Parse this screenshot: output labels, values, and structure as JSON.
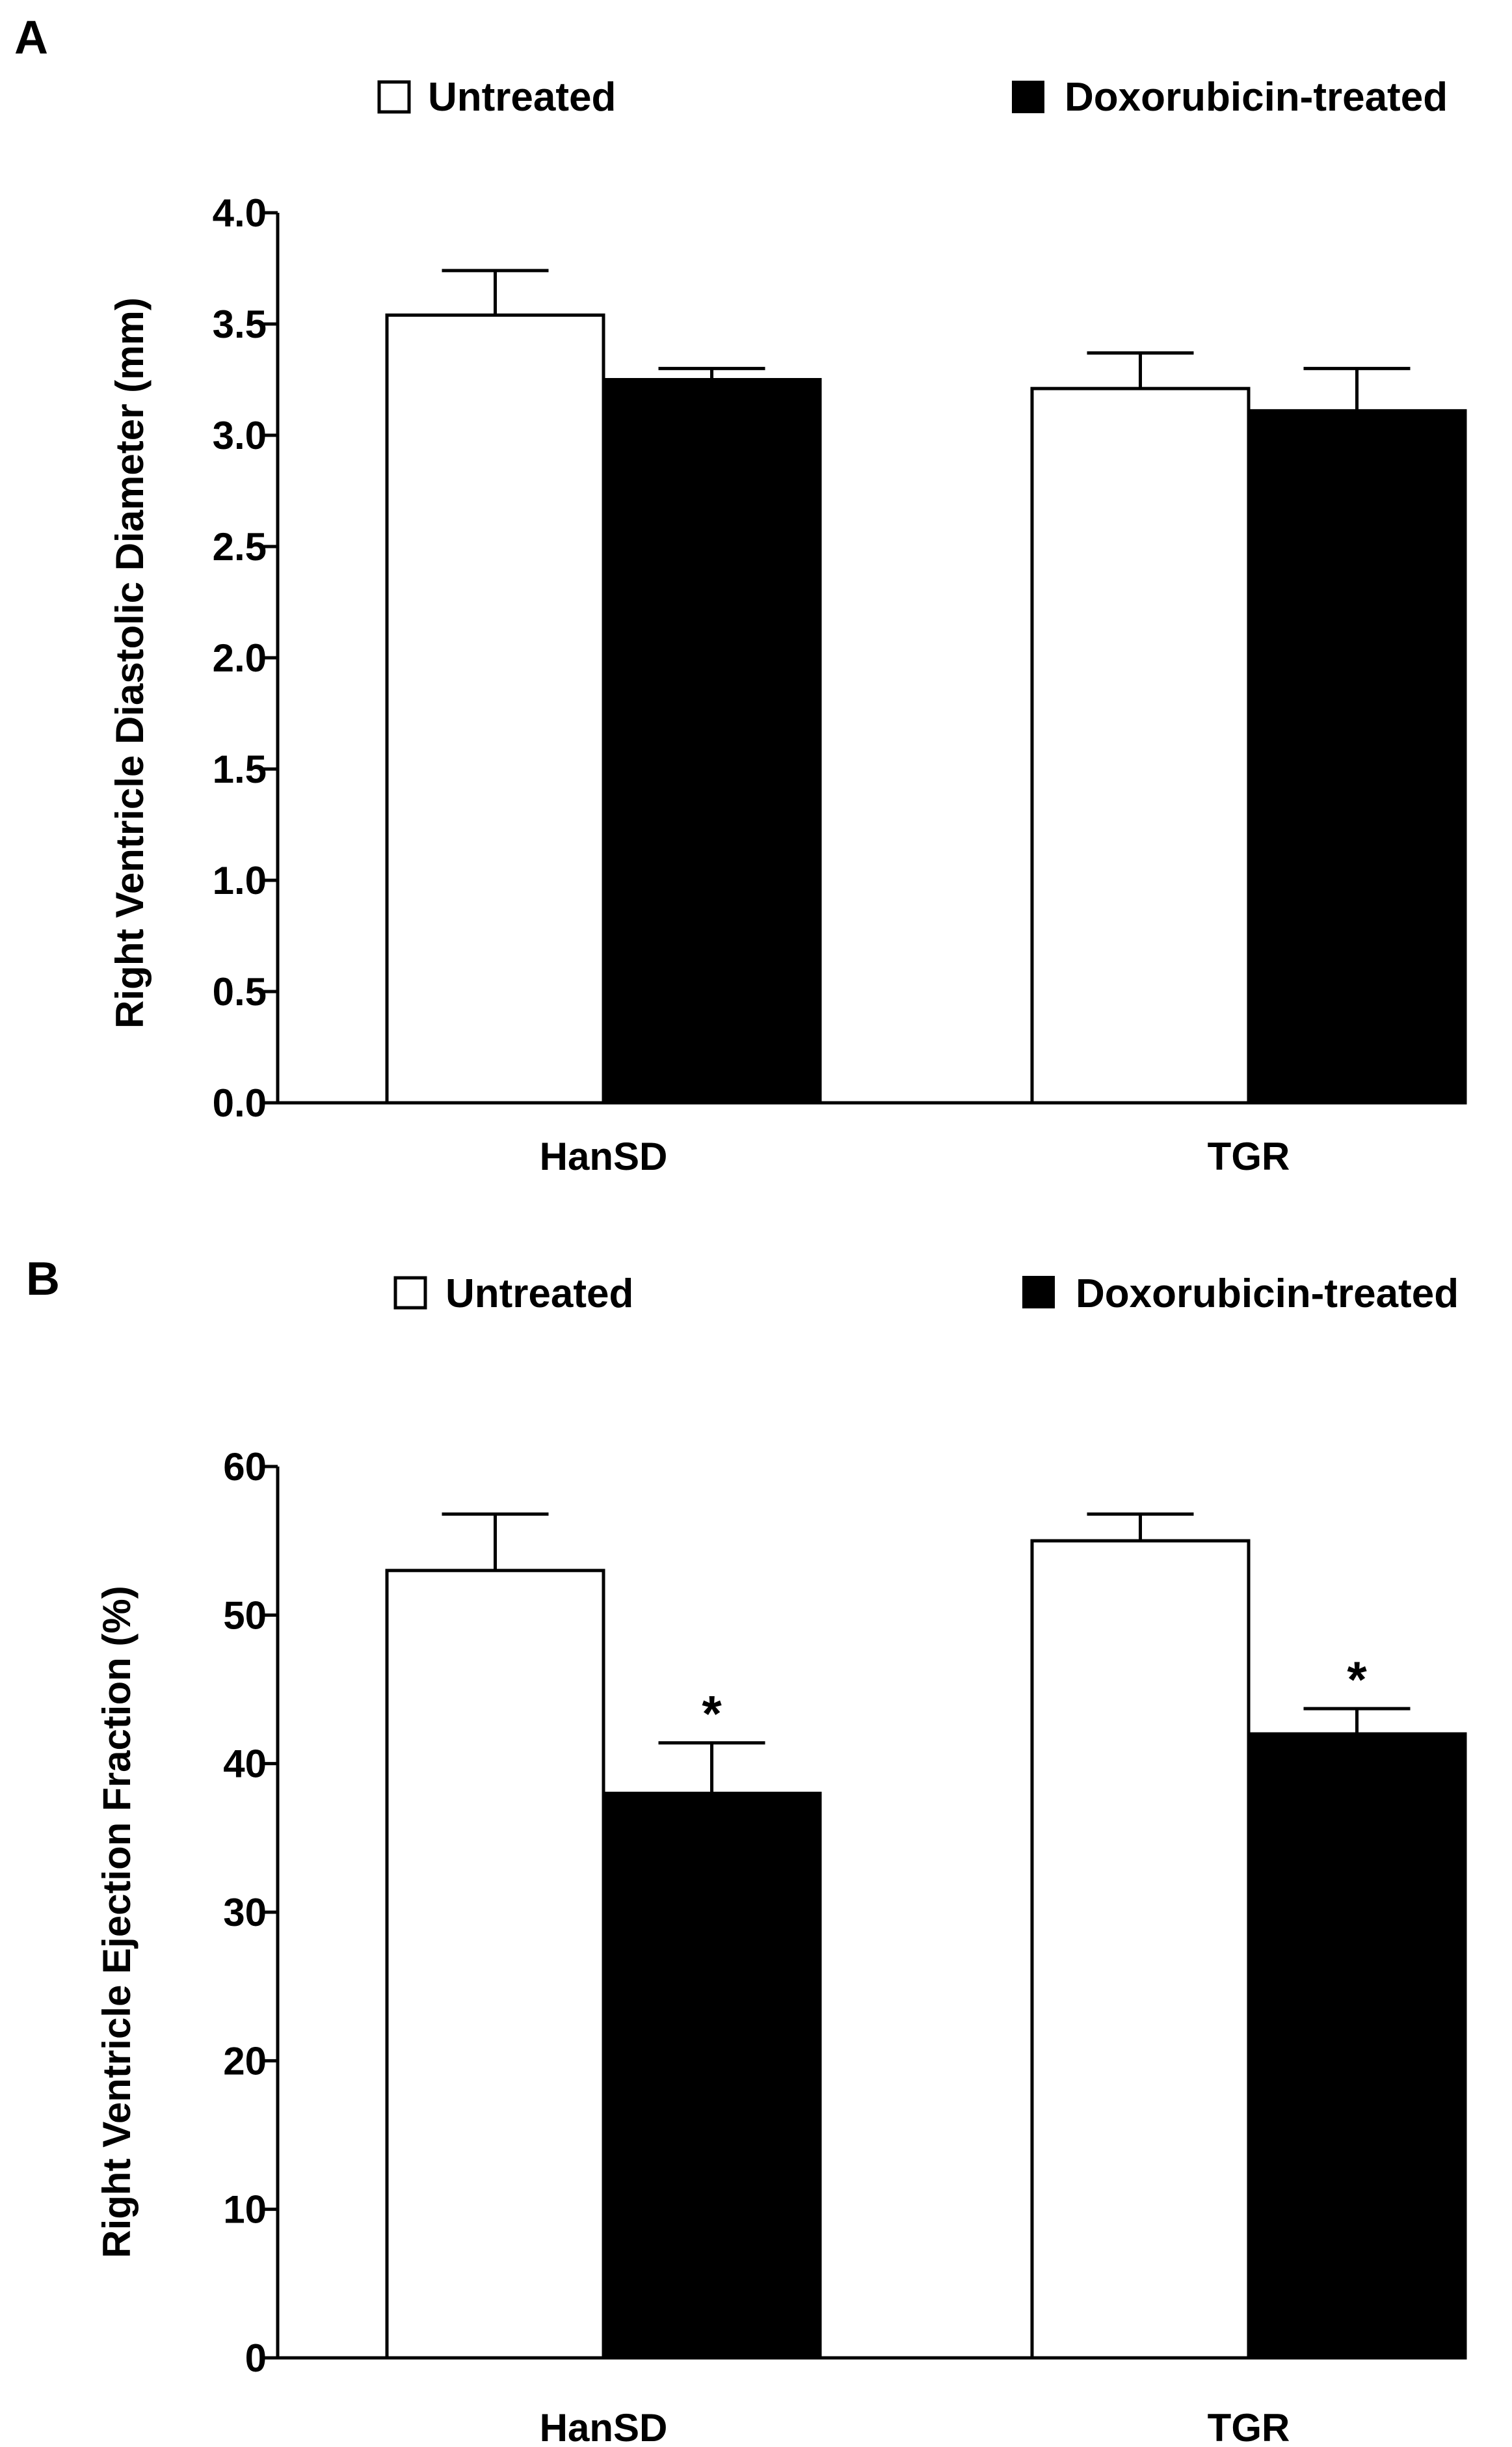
{
  "chart_data": [
    {
      "panel": "A",
      "type": "bar",
      "categories": [
        "HanSD",
        "TGR"
      ],
      "series": [
        {
          "name": "Untreated",
          "color": "#ffffff",
          "values": [
            3.54,
            3.21
          ],
          "errors": [
            0.2,
            0.16
          ]
        },
        {
          "name": "Doxorubicin-treated",
          "color": "#000000",
          "values": [
            3.25,
            3.11
          ],
          "errors": [
            0.05,
            0.19
          ]
        }
      ],
      "ylabel": "Right Ventricle Diastolic Diameter (mm)",
      "ylim": [
        0,
        4.0
      ],
      "yticks": [
        0.0,
        0.5,
        1.0,
        1.5,
        2.0,
        2.5,
        3.0,
        3.5,
        4.0
      ],
      "ytick_labels": [
        "0.0",
        "0.5",
        "1.0",
        "1.5",
        "2.0",
        "2.5",
        "3.0",
        "3.5",
        "4.0"
      ],
      "significance": [
        null,
        null
      ],
      "grid": false,
      "legend": "top"
    },
    {
      "panel": "B",
      "type": "bar",
      "categories": [
        "HanSD",
        "TGR"
      ],
      "series": [
        {
          "name": "Untreated",
          "color": "#ffffff",
          "values": [
            53,
            55
          ],
          "errors": [
            3.8,
            1.8
          ]
        },
        {
          "name": "Doxorubicin-treated",
          "color": "#000000",
          "values": [
            38,
            42
          ],
          "errors": [
            3.4,
            1.7
          ]
        }
      ],
      "ylabel": "Right Ventricle Ejection Fraction (%)",
      "ylim": [
        0,
        60
      ],
      "yticks": [
        0,
        10,
        20,
        30,
        40,
        50,
        60
      ],
      "ytick_labels": [
        "0",
        "10",
        "20",
        "30",
        "40",
        "50",
        "60"
      ],
      "significance": [
        "*",
        "*"
      ],
      "grid": false,
      "legend": "top"
    }
  ]
}
